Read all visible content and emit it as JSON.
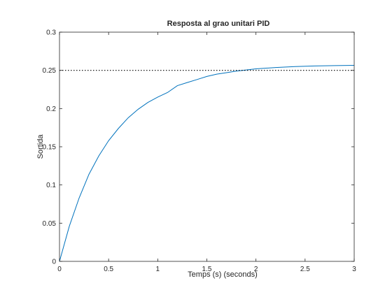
{
  "chart_data": {
    "type": "line",
    "title": "Resposta al grao unitari PID",
    "xlabel": "Temps (s) (seconds)",
    "ylabel": "Sortida",
    "xlim": [
      0,
      3
    ],
    "ylim": [
      0,
      0.3
    ],
    "x_ticks": [
      0,
      0.5,
      1,
      1.5,
      2,
      2.5,
      3
    ],
    "x_tick_labels": [
      "0",
      "0.5",
      "1",
      "1.5",
      "2",
      "2.5",
      "3"
    ],
    "y_ticks": [
      0,
      0.05,
      0.1,
      0.15,
      0.2,
      0.25,
      0.3
    ],
    "y_tick_labels": [
      "0",
      "0.05",
      "0.1",
      "0.15",
      "0.2",
      "0.25",
      "0.3"
    ],
    "grid": false,
    "series": [
      {
        "color": "#0072bd",
        "style": "solid",
        "x": [
          0,
          0.1,
          0.2,
          0.3,
          0.4,
          0.5,
          0.6,
          0.7,
          0.8,
          0.9,
          1.0,
          1.1,
          1.2,
          1.3,
          1.4,
          1.5,
          1.6,
          1.7,
          1.8,
          1.9,
          2.0,
          2.2,
          2.4,
          2.6,
          2.8,
          3.0
        ],
        "y": [
          0,
          0.046,
          0.083,
          0.114,
          0.138,
          0.158,
          0.174,
          0.188,
          0.199,
          0.208,
          0.215,
          0.221,
          0.23,
          0.234,
          0.238,
          0.242,
          0.245,
          0.247,
          0.249,
          0.2505,
          0.252,
          0.2537,
          0.2549,
          0.2557,
          0.2562,
          0.2565
        ]
      },
      {
        "color": "#000000",
        "style": "dotted",
        "x": [
          0,
          3
        ],
        "y": [
          0.25,
          0.25
        ]
      }
    ]
  }
}
